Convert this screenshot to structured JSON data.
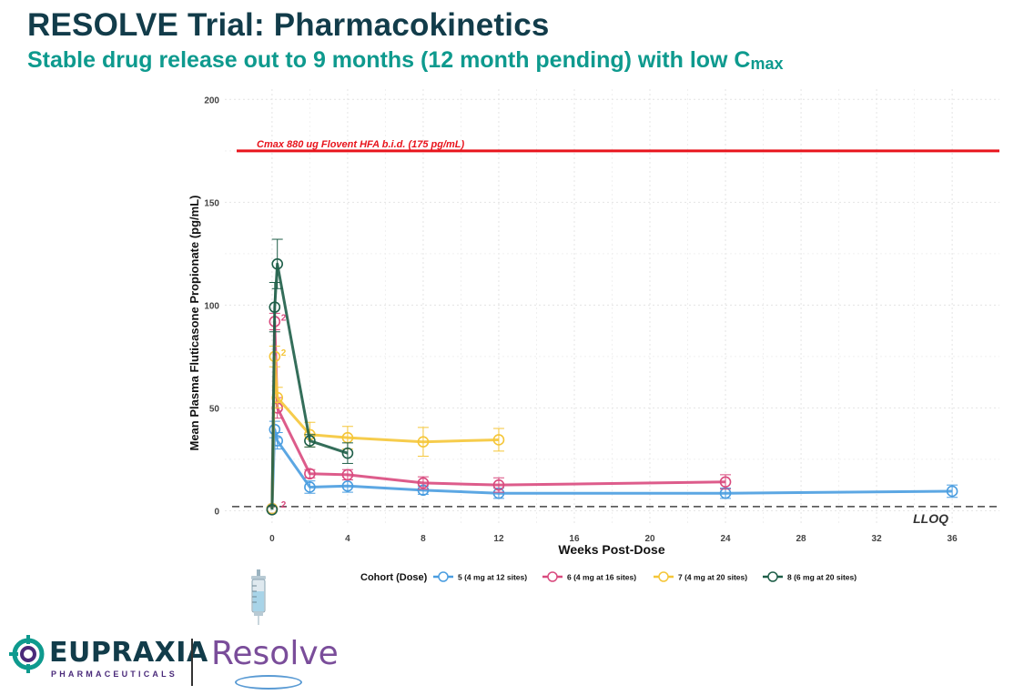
{
  "header": {
    "title": "RESOLVE Trial: Pharmacokinetics",
    "subtitle_main": "Stable drug release out to 9 months (12 month pending) with low C",
    "subtitle_sub": "max"
  },
  "chart_data": {
    "type": "line",
    "xlabel": "Weeks Post-Dose",
    "ylabel": "Mean Plasma Fluticasone Propionate (pg/mL)",
    "xlim": [
      -2.5,
      38.5
    ],
    "ylim": [
      -6,
      205
    ],
    "xticks": [
      0,
      4,
      8,
      12,
      16,
      20,
      24,
      28,
      32,
      36
    ],
    "yticks": [
      0,
      50,
      100,
      150,
      200
    ],
    "grid": true,
    "reference_lines": [
      {
        "label": "Cmax 880 ug Flovent HFA b.i.d. (175 pg/mL)",
        "y": 175,
        "color": "#e8141c",
        "style": "solid"
      },
      {
        "label": "LLOQ",
        "y": 2,
        "color": "#444444",
        "style": "dashed"
      }
    ],
    "legend": {
      "title": "Cohort (Dose)",
      "position": "bottom"
    },
    "series": [
      {
        "name": "5 (4 mg at 12 sites)",
        "color": "#4a9de0",
        "x": [
          0,
          0.14,
          0.28,
          2,
          4,
          8,
          12,
          24,
          36
        ],
        "y": [
          1,
          39.5,
          34,
          11.5,
          12,
          10,
          8.5,
          8.5,
          9.5
        ],
        "err": [
          0,
          4,
          4,
          3,
          3,
          2,
          2.5,
          2.5,
          3
        ]
      },
      {
        "name": "6 (4 mg at 16 sites)",
        "color": "#d94a7e",
        "x": [
          0,
          0.14,
          0.28,
          2,
          4,
          8,
          12,
          24
        ],
        "y": [
          1,
          92,
          50,
          18,
          17.5,
          13.5,
          12.5,
          14
        ],
        "err": [
          0,
          4,
          5,
          2,
          2.5,
          3,
          3.5,
          3.5
        ]
      },
      {
        "name": "7 (4 mg at 20 sites)",
        "color": "#f5c638",
        "x": [
          0,
          0.14,
          0.28,
          2,
          4,
          8,
          12
        ],
        "y": [
          1,
          75,
          55,
          37,
          35.5,
          33.5,
          34.5
        ],
        "err": [
          0,
          5,
          5,
          6,
          5.5,
          7,
          5.5
        ]
      },
      {
        "name": "8 (6 mg at 20 sites)",
        "color": "#1e5e48",
        "x": [
          0,
          0.14,
          0.28,
          2,
          4
        ],
        "y": [
          0.5,
          99,
          120,
          34,
          28
        ],
        "err": [
          0,
          12,
          12,
          3,
          5
        ]
      }
    ],
    "annotations": [
      {
        "text": "2",
        "x": 0.28,
        "y": 92,
        "color": "#d94a7e"
      },
      {
        "text": "2",
        "x": 0.28,
        "y": 75,
        "color": "#f5c638"
      },
      {
        "text": "2",
        "x": 0.28,
        "y": 1,
        "color": "#d94a7e"
      }
    ]
  },
  "branding": {
    "company_name": "EUPRAXIA",
    "company_sub": "PHARMACEUTICALS",
    "product_logo": "Resolve",
    "icons": [
      "syringe-icon",
      "eupraxia-logo-mark"
    ]
  }
}
